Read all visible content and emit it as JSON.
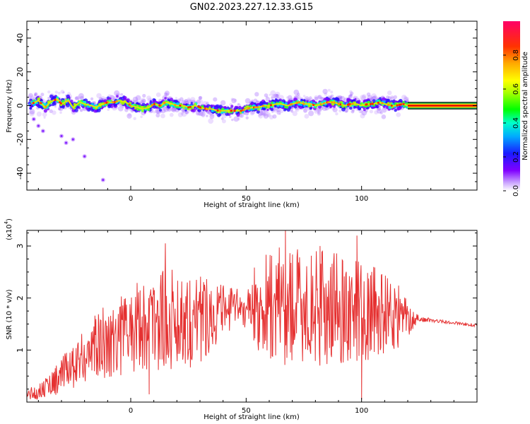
{
  "title": "GN02.2023.227.12.33.G15",
  "colors": {
    "snr_line": "#e53030",
    "frame": "#000000",
    "background": "#ffffff",
    "ridge": "#e60000"
  },
  "chart_data": [
    {
      "type": "heatmap",
      "name": "spectrogram",
      "xlabel": "Height of straight line (km)",
      "ylabel": "Frequency (Hz)",
      "xlim": [
        -45,
        150
      ],
      "ylim": [
        -50,
        50
      ],
      "x_ticks": [
        0,
        50,
        100
      ],
      "y_ticks": [
        -40,
        -20,
        0,
        20,
        40
      ],
      "grid": false,
      "ridge": {
        "x": [
          -43,
          -40,
          -37,
          -35,
          -32,
          -30,
          -27,
          -25,
          -22,
          -20,
          -17,
          -15,
          -12,
          -10,
          -7,
          -5,
          -2,
          0,
          3,
          5,
          8,
          10,
          13,
          15,
          18,
          20,
          23,
          25,
          28,
          30,
          33,
          35,
          38,
          40,
          43,
          45,
          48,
          50,
          53,
          55,
          58,
          60,
          63,
          65,
          68,
          70,
          73,
          75,
          78,
          80,
          83,
          85,
          88,
          90,
          93,
          95,
          98,
          100,
          103,
          105,
          108,
          110,
          113,
          115,
          118,
          120
        ],
        "y": [
          1,
          3,
          -1,
          2,
          4,
          1,
          3,
          -1,
          2,
          1,
          0,
          -1,
          1,
          2,
          2,
          3,
          2,
          0,
          -1,
          -2,
          -1,
          1,
          0,
          2,
          1,
          0,
          0,
          -1,
          0,
          -1,
          -2,
          -2,
          -3,
          -3,
          -3,
          -3,
          -3,
          -2,
          -1,
          -1,
          0,
          0,
          1,
          1,
          0,
          1,
          2,
          1,
          1,
          0,
          1,
          2,
          2,
          1,
          0,
          1,
          1,
          0,
          1,
          1,
          2,
          1,
          0,
          0,
          1,
          0
        ]
      },
      "flat_band": {
        "x_start": 120,
        "x_end": 150,
        "y": 0
      },
      "scatter_points": [
        {
          "x": -42,
          "y": -8
        },
        {
          "x": -40,
          "y": -12
        },
        {
          "x": -38,
          "y": -15
        },
        {
          "x": -30,
          "y": -18
        },
        {
          "x": -28,
          "y": -22
        },
        {
          "x": -25,
          "y": -20
        },
        {
          "x": -20,
          "y": -30
        },
        {
          "x": -12,
          "y": -44
        }
      ],
      "colorbar": {
        "label": "Normalized spectral amplitude",
        "range": [
          0,
          1
        ],
        "ticks": [
          "0.0",
          "0.2",
          "0.4",
          "0.6",
          "0.8"
        ],
        "tick_values": [
          0,
          0.2,
          0.4,
          0.6,
          0.8
        ]
      }
    },
    {
      "type": "line",
      "name": "snr",
      "xlabel": "Height of straight line (km)",
      "ylabel": "SNR (10 * v/v)",
      "y_multiplier": "(x10",
      "y_multiplier_exp": "4",
      "y_multiplier_close": ")",
      "xlim": [
        -45,
        150
      ],
      "ylim": [
        0,
        3.3
      ],
      "x_ticks": [
        0,
        50,
        100
      ],
      "y_ticks": [
        1,
        2,
        3
      ],
      "grid": false,
      "profile": {
        "x": [
          -45,
          -40,
          -35,
          -30,
          -25,
          -20,
          -15,
          -10,
          -5,
          0,
          5,
          10,
          15,
          20,
          25,
          30,
          35,
          40,
          45,
          50,
          55,
          60,
          65,
          70,
          75,
          80,
          85,
          90,
          95,
          100,
          105,
          110,
          115,
          120,
          125,
          130,
          135,
          140,
          145,
          150
        ],
        "center": [
          0.15,
          0.2,
          0.35,
          0.5,
          0.7,
          0.9,
          1.05,
          1.2,
          1.3,
          1.4,
          1.5,
          1.55,
          1.6,
          1.6,
          1.6,
          1.65,
          1.7,
          1.75,
          1.8,
          1.8,
          1.85,
          1.85,
          1.85,
          1.85,
          1.8,
          1.8,
          1.8,
          1.8,
          1.75,
          1.75,
          1.7,
          1.7,
          1.65,
          1.6,
          1.6,
          1.57,
          1.55,
          1.52,
          1.5,
          1.47
        ],
        "amplitude": [
          0.12,
          0.15,
          0.25,
          0.35,
          0.45,
          0.55,
          0.65,
          0.75,
          0.8,
          0.85,
          0.9,
          0.95,
          1.0,
          1.0,
          0.95,
          0.9,
          0.7,
          0.5,
          0.4,
          0.4,
          0.9,
          1.1,
          1.2,
          1.2,
          1.1,
          1.1,
          1.1,
          1.1,
          1.0,
          1.0,
          0.9,
          0.85,
          0.7,
          0.35,
          0.05,
          0.04,
          0.03,
          0.03,
          0.03,
          0.03
        ]
      },
      "peaks": [
        {
          "x": 15,
          "y": 3.05
        },
        {
          "x": 67,
          "y": 3.3
        },
        {
          "x": 98,
          "y": 3.2
        },
        {
          "x": 82,
          "y": 3.0
        },
        {
          "x": 100,
          "y": 0.05
        },
        {
          "x": 8,
          "y": 0.15
        }
      ]
    }
  ]
}
